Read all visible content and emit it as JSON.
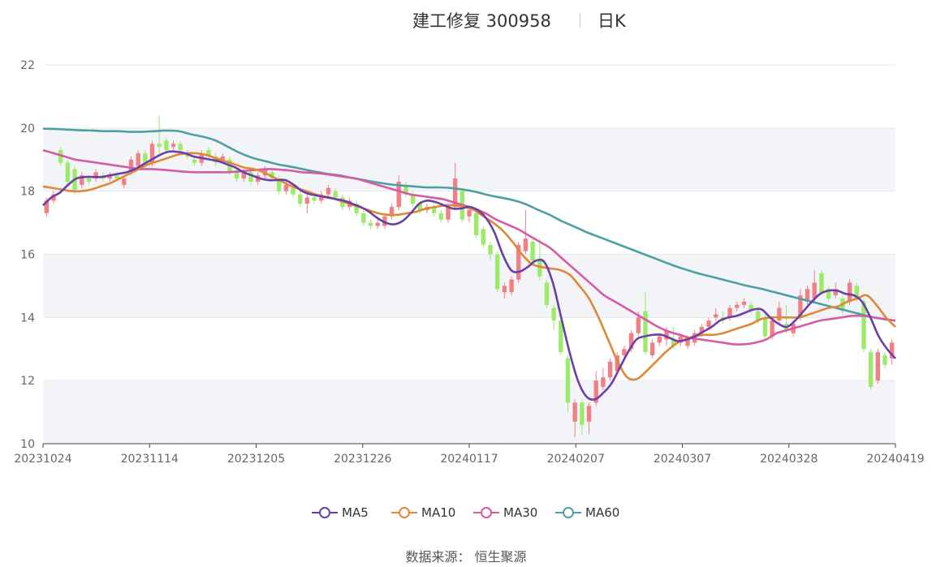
{
  "header": {
    "title": "建工修复 300958",
    "period": "日K"
  },
  "source": {
    "label": "数据来源：",
    "provider": "恒生聚源"
  },
  "colors": {
    "up": "#f27e86",
    "down": "#9bea6a",
    "ma5": "#6a3fa8",
    "ma10": "#e08838",
    "ma30": "#d65aa5",
    "ma60": "#4d9fa0",
    "band": "#f3f4f8",
    "grid": "#e8e9f0"
  },
  "chart_data": {
    "type": "candlestick",
    "ylim": [
      10,
      22
    ],
    "yticks": [
      10,
      12,
      14,
      16,
      18,
      20,
      22
    ],
    "xticks": [
      "20231024",
      "20231114",
      "20231205",
      "20231226",
      "20240117",
      "20240207",
      "20240307",
      "20240328",
      "20240419"
    ],
    "legend_position": "bottom",
    "series_names": [
      "MA5",
      "MA10",
      "MA30",
      "MA60"
    ],
    "candles": [
      [
        17.3,
        17.7,
        17.8,
        17.2
      ],
      [
        17.7,
        17.9,
        18.0,
        17.6
      ],
      [
        19.3,
        18.9,
        19.4,
        18.8
      ],
      [
        18.9,
        18.3,
        19.0,
        18.2
      ],
      [
        18.7,
        18.0,
        18.8,
        17.9
      ],
      [
        18.2,
        18.5,
        18.6,
        18.1
      ],
      [
        18.4,
        18.3,
        18.5,
        18.2
      ],
      [
        18.4,
        18.6,
        18.7,
        18.3
      ],
      [
        18.5,
        18.4,
        18.6,
        18.3
      ],
      [
        18.4,
        18.5,
        18.6,
        18.3
      ],
      [
        18.5,
        18.4,
        18.6,
        18.3
      ],
      [
        18.2,
        18.4,
        18.5,
        18.1
      ],
      [
        18.6,
        19.0,
        19.1,
        18.5
      ],
      [
        18.8,
        19.2,
        19.3,
        18.7
      ],
      [
        19.2,
        18.8,
        19.3,
        18.7
      ],
      [
        18.9,
        19.5,
        19.6,
        18.8
      ],
      [
        19.5,
        19.4,
        20.4,
        19.2
      ],
      [
        19.6,
        19.3,
        19.7,
        19.2
      ],
      [
        19.4,
        19.5,
        19.6,
        19.3
      ],
      [
        19.5,
        19.3,
        19.6,
        19.2
      ],
      [
        19.2,
        19.1,
        19.3,
        19.0
      ],
      [
        19.0,
        18.9,
        19.1,
        18.8
      ],
      [
        18.9,
        19.2,
        19.3,
        18.8
      ],
      [
        19.3,
        19.1,
        19.4,
        19.0
      ],
      [
        19.1,
        18.9,
        19.2,
        18.8
      ],
      [
        19.0,
        19.1,
        19.2,
        18.9
      ],
      [
        19.0,
        18.6,
        19.1,
        18.5
      ],
      [
        18.6,
        18.4,
        18.7,
        18.3
      ],
      [
        18.4,
        18.6,
        18.7,
        18.3
      ],
      [
        18.6,
        18.3,
        18.7,
        18.2
      ],
      [
        18.3,
        18.5,
        18.6,
        18.2
      ],
      [
        18.5,
        18.7,
        18.8,
        18.4
      ],
      [
        18.6,
        18.4,
        18.7,
        18.3
      ],
      [
        18.4,
        18.0,
        18.5,
        17.9
      ],
      [
        18.0,
        18.2,
        18.3,
        17.9
      ],
      [
        18.1,
        17.9,
        18.2,
        17.8
      ],
      [
        17.9,
        17.6,
        18.0,
        17.5
      ],
      [
        17.6,
        17.8,
        17.9,
        17.3
      ],
      [
        17.8,
        17.7,
        17.9,
        17.6
      ],
      [
        17.7,
        17.9,
        18.0,
        17.6
      ],
      [
        17.9,
        18.1,
        18.2,
        17.8
      ],
      [
        18.0,
        17.8,
        18.1,
        17.7
      ],
      [
        17.8,
        17.5,
        17.9,
        17.4
      ],
      [
        17.5,
        17.7,
        17.8,
        17.4
      ],
      [
        17.6,
        17.3,
        17.7,
        17.2
      ],
      [
        17.3,
        17.0,
        17.4,
        16.9
      ],
      [
        17.0,
        16.9,
        17.1,
        16.8
      ],
      [
        16.9,
        17.0,
        17.1,
        16.8
      ],
      [
        16.9,
        17.2,
        17.3,
        16.8
      ],
      [
        17.2,
        17.5,
        17.6,
        17.1
      ],
      [
        17.5,
        18.3,
        18.5,
        17.4
      ],
      [
        18.2,
        17.9,
        18.3,
        17.8
      ],
      [
        17.9,
        17.6,
        18.0,
        17.5
      ],
      [
        17.6,
        17.4,
        17.7,
        17.3
      ],
      [
        17.4,
        17.5,
        17.6,
        17.3
      ],
      [
        17.5,
        17.3,
        17.6,
        17.2
      ],
      [
        17.3,
        17.1,
        17.4,
        17.0
      ],
      [
        17.1,
        17.5,
        17.6,
        17.0
      ],
      [
        17.5,
        18.4,
        18.9,
        17.4
      ],
      [
        18.0,
        17.1,
        18.1,
        17.0
      ],
      [
        17.2,
        17.4,
        17.5,
        17.0
      ],
      [
        17.3,
        16.6,
        17.4,
        16.5
      ],
      [
        16.8,
        16.3,
        16.9,
        16.2
      ],
      [
        16.3,
        16.0,
        16.4,
        15.8
      ],
      [
        16.0,
        14.9,
        16.1,
        14.8
      ],
      [
        14.8,
        15.0,
        15.1,
        14.6
      ],
      [
        14.8,
        15.2,
        15.3,
        14.7
      ],
      [
        15.2,
        16.3,
        16.4,
        15.1
      ],
      [
        16.1,
        16.5,
        17.4,
        16.0
      ],
      [
        16.4,
        15.8,
        16.5,
        15.7
      ],
      [
        15.8,
        15.3,
        16.5,
        15.2
      ],
      [
        15.1,
        14.4,
        15.2,
        14.3
      ],
      [
        14.3,
        13.9,
        14.4,
        13.6
      ],
      [
        13.9,
        12.9,
        14.0,
        12.8
      ],
      [
        12.7,
        11.3,
        12.8,
        11.0
      ],
      [
        10.7,
        11.3,
        11.4,
        10.2
      ],
      [
        11.3,
        10.6,
        11.4,
        10.3
      ],
      [
        10.7,
        11.2,
        11.3,
        10.3
      ],
      [
        11.3,
        12.0,
        12.3,
        11.2
      ],
      [
        11.8,
        12.1,
        12.4,
        11.7
      ],
      [
        12.1,
        12.6,
        12.7,
        12.0
      ],
      [
        12.3,
        12.8,
        12.9,
        12.2
      ],
      [
        12.8,
        13.0,
        13.1,
        12.7
      ],
      [
        13.0,
        13.5,
        13.6,
        12.9
      ],
      [
        13.5,
        14.0,
        14.2,
        13.4
      ],
      [
        14.2,
        12.9,
        14.8,
        12.8
      ],
      [
        12.8,
        13.2,
        13.3,
        12.7
      ],
      [
        13.2,
        13.4,
        13.5,
        13.1
      ],
      [
        13.3,
        13.6,
        13.7,
        13.1
      ],
      [
        13.3,
        13.1,
        13.7,
        13.0
      ],
      [
        13.2,
        13.4,
        13.5,
        13.1
      ],
      [
        13.1,
        13.3,
        13.4,
        13.0
      ],
      [
        13.2,
        13.5,
        13.6,
        13.1
      ],
      [
        13.5,
        13.7,
        13.8,
        13.4
      ],
      [
        13.7,
        13.9,
        14.0,
        13.6
      ],
      [
        14.0,
        14.1,
        14.3,
        13.9
      ],
      [
        14.0,
        13.9,
        14.2,
        13.8
      ],
      [
        14.0,
        14.3,
        14.4,
        13.9
      ],
      [
        14.3,
        14.4,
        14.5,
        14.2
      ],
      [
        14.4,
        14.5,
        14.6,
        14.3
      ],
      [
        14.4,
        14.2,
        14.5,
        14.1
      ],
      [
        14.2,
        13.9,
        14.3,
        13.8
      ],
      [
        14.0,
        13.4,
        14.1,
        13.3
      ],
      [
        13.4,
        13.9,
        14.0,
        13.3
      ],
      [
        13.9,
        14.3,
        14.5,
        13.8
      ],
      [
        13.8,
        13.6,
        14.4,
        13.5
      ],
      [
        13.5,
        13.8,
        13.9,
        13.4
      ],
      [
        14.0,
        14.7,
        14.9,
        13.9
      ],
      [
        14.5,
        14.9,
        15.0,
        14.4
      ],
      [
        14.6,
        15.1,
        15.5,
        14.5
      ],
      [
        15.4,
        14.8,
        15.5,
        14.7
      ],
      [
        14.9,
        14.6,
        15.0,
        14.5
      ],
      [
        14.7,
        14.9,
        15.1,
        14.6
      ],
      [
        14.6,
        14.2,
        14.7,
        14.1
      ],
      [
        14.5,
        15.1,
        15.2,
        14.4
      ],
      [
        15.0,
        14.6,
        15.1,
        14.5
      ],
      [
        14.5,
        13.0,
        14.6,
        12.9
      ],
      [
        12.9,
        11.8,
        13.0,
        11.7
      ],
      [
        12.0,
        12.9,
        13.0,
        11.9
      ],
      [
        12.8,
        12.5,
        12.9,
        12.4
      ],
      [
        12.7,
        13.2,
        13.3,
        12.5
      ]
    ],
    "ma": {
      "MA5": [
        17.55,
        17.8,
        17.95,
        18.2,
        18.4,
        18.45,
        18.45,
        18.45,
        18.5,
        18.55,
        18.6,
        18.7,
        18.85,
        19.0,
        19.15,
        19.25,
        19.25,
        19.2,
        19.1,
        19.05,
        19.0,
        18.95,
        18.85,
        18.75,
        18.6,
        18.5,
        18.4,
        18.35,
        18.35,
        18.35,
        18.2,
        18.0,
        17.9,
        17.85,
        17.8,
        17.75,
        17.7,
        17.6,
        17.5,
        17.35,
        17.15,
        17.0,
        16.95,
        17.05,
        17.3,
        17.6,
        17.7,
        17.65,
        17.55,
        17.45,
        17.45,
        17.5,
        17.4,
        17.15,
        16.7,
        16.0,
        15.5,
        15.45,
        15.6,
        15.8,
        15.75,
        15.1,
        14.0,
        12.9,
        12.0,
        11.5,
        11.4,
        11.6,
        11.9,
        12.4,
        12.9,
        13.3,
        13.4,
        13.45,
        13.45,
        13.35,
        13.25,
        13.3,
        13.4,
        13.55,
        13.7,
        13.9,
        14.0,
        14.05,
        14.15,
        14.25,
        14.25,
        14.0,
        13.8,
        13.7,
        13.9,
        14.2,
        14.5,
        14.75,
        14.85,
        14.85,
        14.75,
        14.7,
        14.5,
        14.0,
        13.4,
        13.0,
        12.7
      ],
      "MA10": [
        18.15,
        18.1,
        18.05,
        18.0,
        18.0,
        18.05,
        18.15,
        18.25,
        18.4,
        18.55,
        18.7,
        18.85,
        18.95,
        19.05,
        19.15,
        19.2,
        19.2,
        19.15,
        19.05,
        18.95,
        18.85,
        18.75,
        18.7,
        18.6,
        18.45,
        18.3,
        18.15,
        18.05,
        17.95,
        17.85,
        17.8,
        17.7,
        17.6,
        17.5,
        17.4,
        17.3,
        17.25,
        17.25,
        17.3,
        17.35,
        17.45,
        17.5,
        17.55,
        17.55,
        17.5,
        17.4,
        17.2,
        17.0,
        16.75,
        16.4,
        16.0,
        15.7,
        15.6,
        15.55,
        15.5,
        15.35,
        15.0,
        14.6,
        14.0,
        13.3,
        12.6,
        12.1,
        12.05,
        12.3,
        12.6,
        12.9,
        13.15,
        13.3,
        13.4,
        13.45,
        13.45,
        13.5,
        13.6,
        13.7,
        13.8,
        13.95,
        14.0,
        14.0,
        14.0,
        14.0,
        14.1,
        14.2,
        14.3,
        14.35,
        14.5,
        14.6,
        14.7,
        14.4,
        14.0,
        13.7
      ],
      "MA30": [
        19.3,
        19.2,
        19.1,
        19.0,
        18.95,
        18.9,
        18.85,
        18.8,
        18.75,
        18.7,
        18.7,
        18.68,
        18.65,
        18.62,
        18.6,
        18.6,
        18.6,
        18.6,
        18.62,
        18.65,
        18.68,
        18.7,
        18.68,
        18.65,
        18.6,
        18.58,
        18.55,
        18.5,
        18.45,
        18.4,
        18.3,
        18.2,
        18.1,
        18.0,
        17.9,
        17.85,
        17.8,
        17.75,
        17.65,
        17.55,
        17.45,
        17.3,
        17.1,
        16.95,
        16.8,
        16.6,
        16.4,
        16.2,
        15.9,
        15.6,
        15.3,
        15.0,
        14.7,
        14.5,
        14.3,
        14.1,
        13.9,
        13.7,
        13.55,
        13.45,
        13.35,
        13.3,
        13.25,
        13.2,
        13.15,
        13.15,
        13.2,
        13.3,
        13.5,
        13.6,
        13.7,
        13.8,
        13.9,
        13.95,
        14.0,
        14.05,
        14.05,
        14.0,
        13.95,
        13.9
      ],
      "MA60": [
        19.98,
        19.97,
        19.95,
        19.93,
        19.92,
        19.9,
        19.9,
        19.88,
        19.88,
        19.9,
        19.92,
        19.9,
        19.8,
        19.72,
        19.6,
        19.4,
        19.2,
        19.05,
        18.95,
        18.85,
        18.78,
        18.7,
        18.62,
        18.55,
        18.5,
        18.42,
        18.35,
        18.28,
        18.22,
        18.18,
        18.15,
        18.12,
        18.12,
        18.1,
        18.05,
        17.98,
        17.88,
        17.8,
        17.72,
        17.6,
        17.42,
        17.25,
        17.05,
        16.88,
        16.7,
        16.55,
        16.4,
        16.25,
        16.1,
        15.95,
        15.8,
        15.65,
        15.52,
        15.4,
        15.3,
        15.2,
        15.1,
        15.0,
        14.92,
        14.82,
        14.72,
        14.62,
        14.52,
        14.42,
        14.32,
        14.22,
        14.12,
        14.02,
        13.95,
        13.9
      ]
    }
  }
}
